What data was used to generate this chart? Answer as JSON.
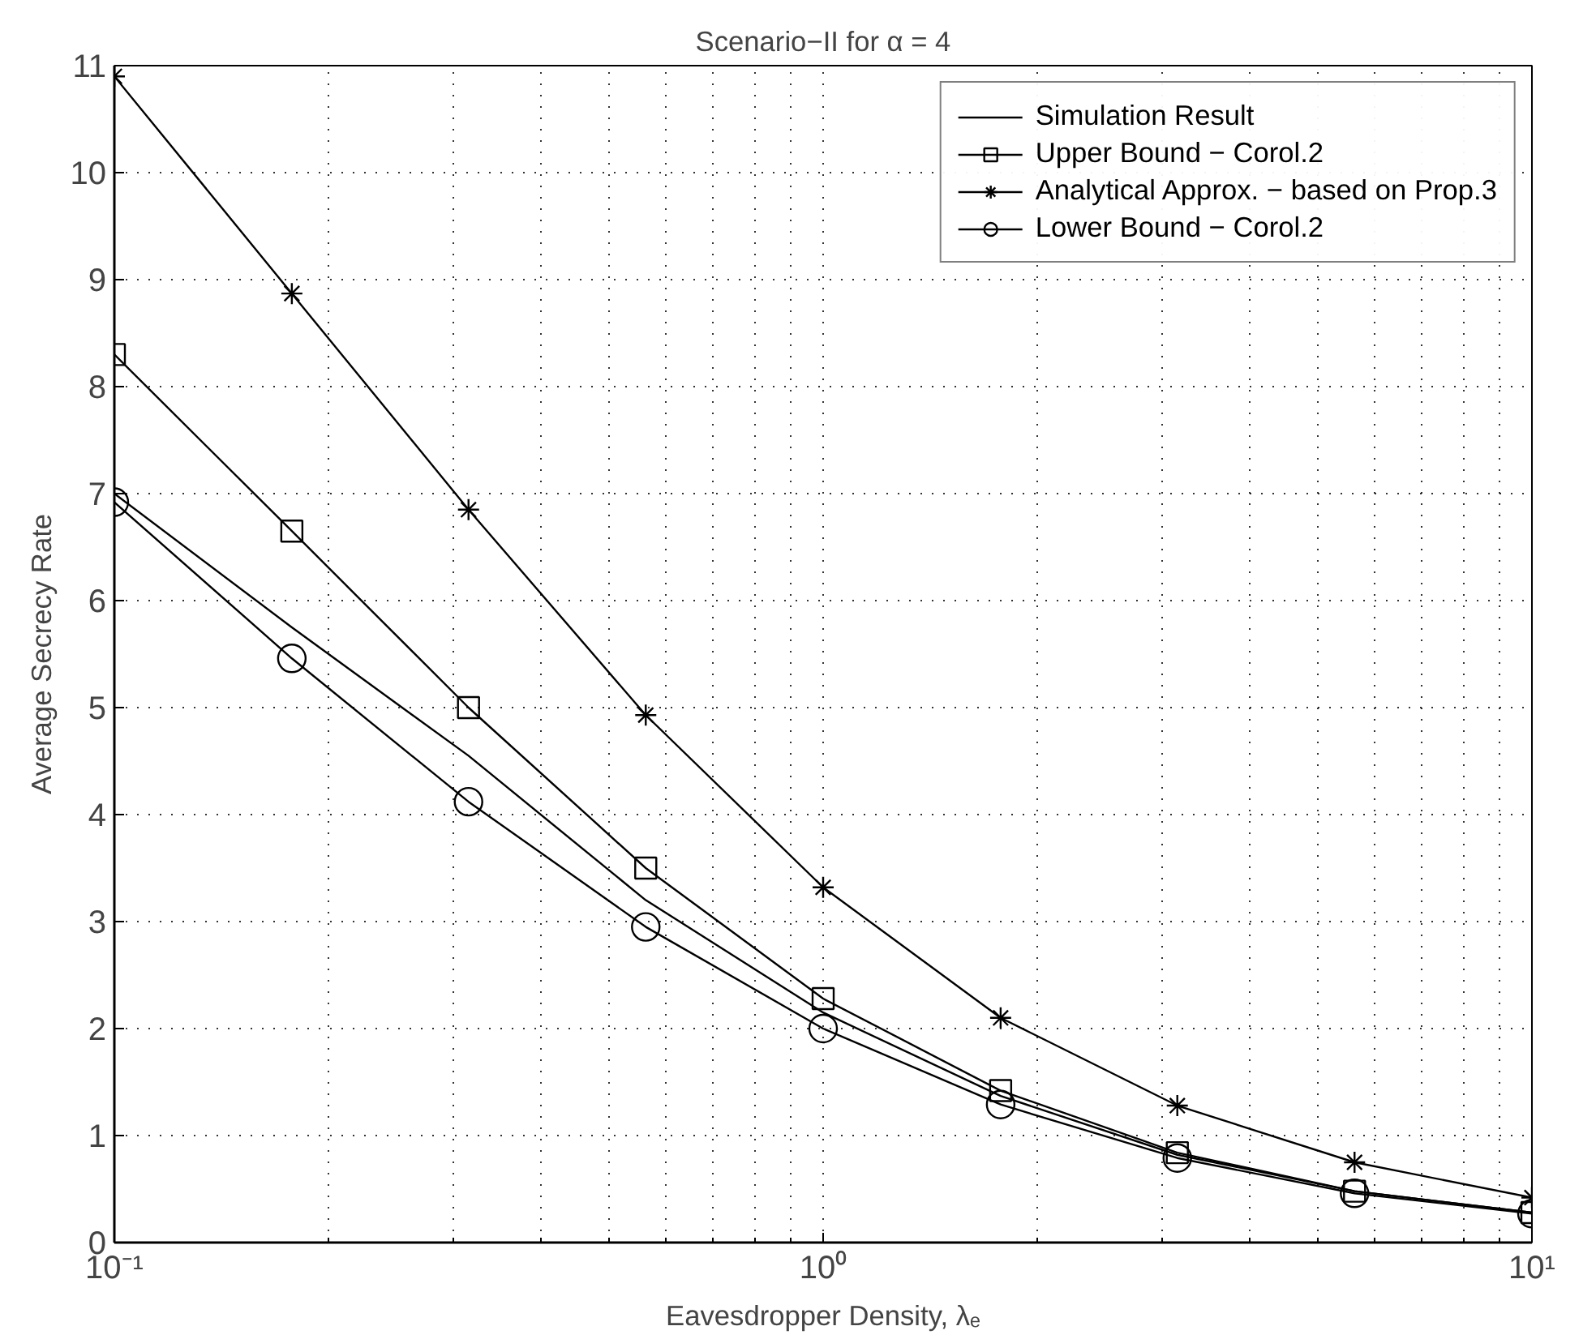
{
  "chart_data": {
    "type": "line",
    "title": "Scenario−II for α = 4",
    "xlabel": "Eavesdropper Density, λₑ",
    "ylabel": "Average Secrecy Rate",
    "x": [
      0.1,
      0.178,
      0.316,
      0.562,
      1,
      1.78,
      3.16,
      5.62,
      10
    ],
    "series": [
      {
        "name": "Simulation Result",
        "color": "#000000",
        "marker": "none",
        "values": [
          7.0,
          5.75,
          4.55,
          3.2,
          2.15,
          1.37,
          0.82,
          0.48,
          0.28
        ]
      },
      {
        "name": "Upper Bound − Corol.2",
        "color": "#000000",
        "marker": "square",
        "values": [
          8.3,
          6.65,
          5.0,
          3.5,
          2.28,
          1.42,
          0.84,
          0.48,
          0.28
        ]
      },
      {
        "name": "Analytical Approx. − based on Prop.3",
        "color": "#000000",
        "marker": "cross",
        "values": [
          10.9,
          8.87,
          6.85,
          4.93,
          3.32,
          2.1,
          1.28,
          0.75,
          0.42
        ]
      },
      {
        "name": "Lower Bound − Corol.2",
        "color": "#000000",
        "marker": "circle",
        "values": [
          6.92,
          5.46,
          4.12,
          2.95,
          2.0,
          1.29,
          0.79,
          0.46,
          0.27
        ]
      }
    ],
    "log": "x",
    "xlim": [
      0.1,
      10
    ],
    "ylim": [
      0,
      11
    ],
    "xticks": [
      {
        "value": 0.1,
        "label": "10⁻¹"
      },
      {
        "value": 1,
        "label": "10⁰"
      },
      {
        "value": 10,
        "label": "10¹"
      }
    ],
    "yticks": [
      0,
      1,
      2,
      3,
      4,
      5,
      6,
      7,
      8,
      9,
      10,
      11
    ],
    "grid": true,
    "legend": "top right",
    "line_style": "solid"
  }
}
